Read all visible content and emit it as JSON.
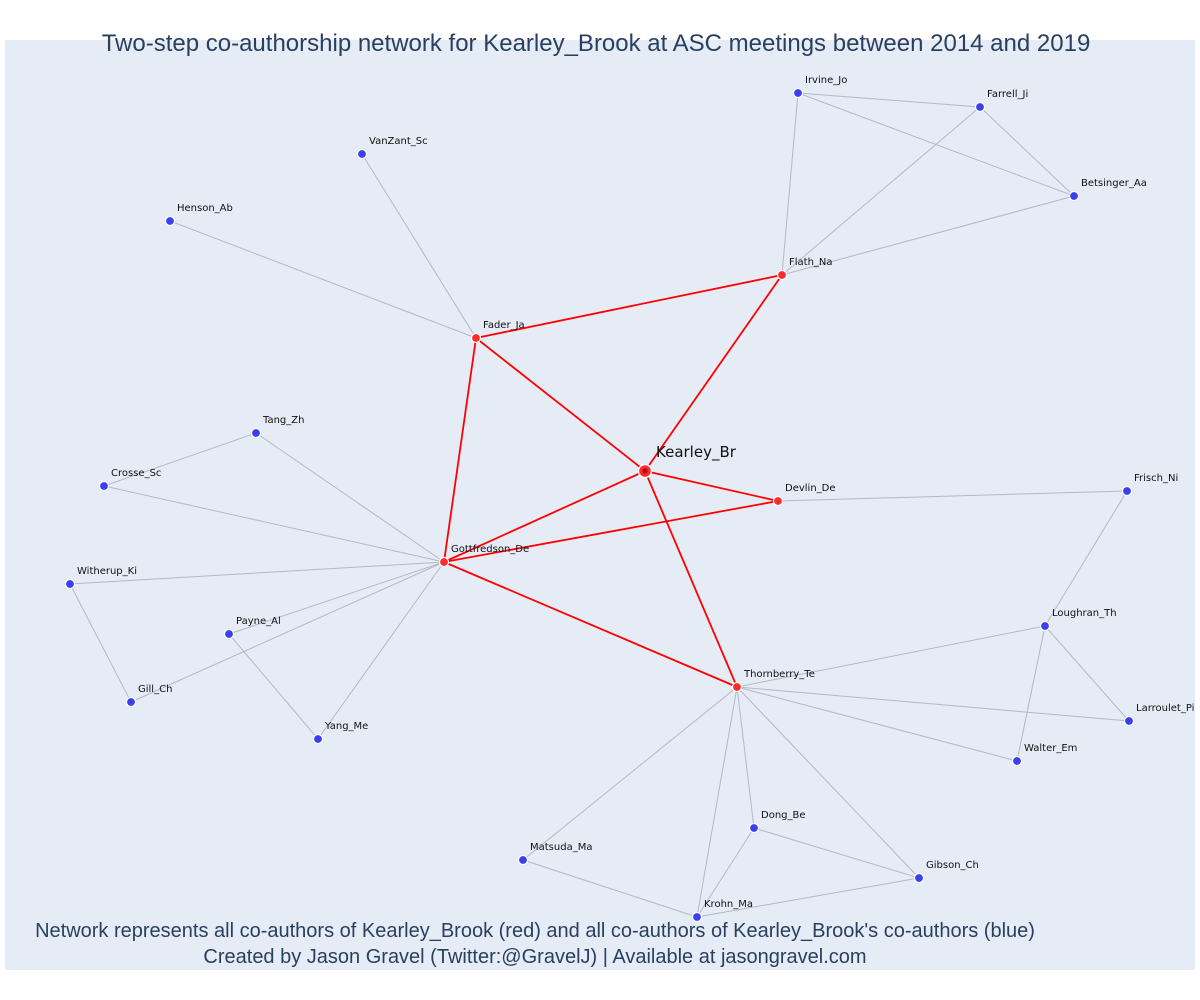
{
  "title": "Two-step co-authorship network for Kearley_Brook at ASC meetings between 2014 and 2019",
  "caption": {
    "line1": "Network represents all co-authors of Kearley_Brook (red) and all co-authors of Kearley_Brook's co-authors (blue)",
    "line2": "Created by Jason Gravel (Twitter:@GravelJ) | Available at jasongravel.com"
  },
  "colors": {
    "background": "#e5ecf6",
    "red": "#ff0000",
    "blue": "#3a3ff0",
    "grey_edge": "#b4b7c8",
    "title": "#2a3f5f"
  },
  "nodes": [
    {
      "id": "Kearley_Br",
      "group": "center"
    },
    {
      "id": "Fader_Ja",
      "group": "red"
    },
    {
      "id": "Flath_Na",
      "group": "red"
    },
    {
      "id": "Devlin_De",
      "group": "red"
    },
    {
      "id": "Gottfredson_De",
      "group": "red"
    },
    {
      "id": "Thornberry_Te",
      "group": "red"
    },
    {
      "id": "Irvine_Jo",
      "group": "blue"
    },
    {
      "id": "Farrell_Ji",
      "group": "blue"
    },
    {
      "id": "Betsinger_Aa",
      "group": "blue"
    },
    {
      "id": "VanZant_Sc",
      "group": "blue"
    },
    {
      "id": "Henson_Ab",
      "group": "blue"
    },
    {
      "id": "Tang_Zh",
      "group": "blue"
    },
    {
      "id": "Crosse_Sc",
      "group": "blue"
    },
    {
      "id": "Frisch_Ni",
      "group": "blue"
    },
    {
      "id": "Witherup_Ki",
      "group": "blue"
    },
    {
      "id": "Payne_Al",
      "group": "blue"
    },
    {
      "id": "Loughran_Th",
      "group": "blue"
    },
    {
      "id": "Gill_Ch",
      "group": "blue"
    },
    {
      "id": "Larroulet_Pi",
      "group": "blue"
    },
    {
      "id": "Yang_Me",
      "group": "blue"
    },
    {
      "id": "Walter_Em",
      "group": "blue"
    },
    {
      "id": "Dong_Be",
      "group": "blue"
    },
    {
      "id": "Matsuda_Ma",
      "group": "blue"
    },
    {
      "id": "Gibson_Ch",
      "group": "blue"
    },
    {
      "id": "Krohn_Ma",
      "group": "blue"
    }
  ],
  "edges": [
    {
      "source": "Kearley_Br",
      "target": "Fader_Ja",
      "type": "red"
    },
    {
      "source": "Kearley_Br",
      "target": "Flath_Na",
      "type": "red"
    },
    {
      "source": "Kearley_Br",
      "target": "Devlin_De",
      "type": "red"
    },
    {
      "source": "Kearley_Br",
      "target": "Gottfredson_De",
      "type": "red"
    },
    {
      "source": "Kearley_Br",
      "target": "Thornberry_Te",
      "type": "red"
    },
    {
      "source": "Fader_Ja",
      "target": "Flath_Na",
      "type": "red"
    },
    {
      "source": "Fader_Ja",
      "target": "Gottfredson_De",
      "type": "red"
    },
    {
      "source": "Gottfredson_De",
      "target": "Devlin_De",
      "type": "red"
    },
    {
      "source": "Gottfredson_De",
      "target": "Thornberry_Te",
      "type": "red"
    },
    {
      "source": "Irvine_Jo",
      "target": "Farrell_Ji",
      "type": "grey"
    },
    {
      "source": "Irvine_Jo",
      "target": "Betsinger_Aa",
      "type": "grey"
    },
    {
      "source": "Irvine_Jo",
      "target": "Flath_Na",
      "type": "grey"
    },
    {
      "source": "Farrell_Ji",
      "target": "Betsinger_Aa",
      "type": "grey"
    },
    {
      "source": "Farrell_Ji",
      "target": "Flath_Na",
      "type": "grey"
    },
    {
      "source": "Betsinger_Aa",
      "target": "Flath_Na",
      "type": "grey"
    },
    {
      "source": "VanZant_Sc",
      "target": "Fader_Ja",
      "type": "grey"
    },
    {
      "source": "Henson_Ab",
      "target": "Fader_Ja",
      "type": "grey"
    },
    {
      "source": "Tang_Zh",
      "target": "Crosse_Sc",
      "type": "grey"
    },
    {
      "source": "Tang_Zh",
      "target": "Gottfredson_De",
      "type": "grey"
    },
    {
      "source": "Crosse_Sc",
      "target": "Gottfredson_De",
      "type": "grey"
    },
    {
      "source": "Witherup_Ki",
      "target": "Gottfredson_De",
      "type": "grey"
    },
    {
      "source": "Witherup_Ki",
      "target": "Gill_Ch",
      "type": "grey"
    },
    {
      "source": "Gill_Ch",
      "target": "Gottfredson_De",
      "type": "grey"
    },
    {
      "source": "Payne_Al",
      "target": "Gottfredson_De",
      "type": "grey"
    },
    {
      "source": "Payne_Al",
      "target": "Yang_Me",
      "type": "grey"
    },
    {
      "source": "Yang_Me",
      "target": "Gottfredson_De",
      "type": "grey"
    },
    {
      "source": "Devlin_De",
      "target": "Frisch_Ni",
      "type": "grey"
    },
    {
      "source": "Frisch_Ni",
      "target": "Loughran_Th",
      "type": "grey"
    },
    {
      "source": "Loughran_Th",
      "target": "Thornberry_Te",
      "type": "grey"
    },
    {
      "source": "Loughran_Th",
      "target": "Larroulet_Pi",
      "type": "grey"
    },
    {
      "source": "Loughran_Th",
      "target": "Walter_Em",
      "type": "grey"
    },
    {
      "source": "Thornberry_Te",
      "target": "Larroulet_Pi",
      "type": "grey"
    },
    {
      "source": "Thornberry_Te",
      "target": "Walter_Em",
      "type": "grey"
    },
    {
      "source": "Thornberry_Te",
      "target": "Dong_Be",
      "type": "grey"
    },
    {
      "source": "Thornberry_Te",
      "target": "Gibson_Ch",
      "type": "grey"
    },
    {
      "source": "Thornberry_Te",
      "target": "Matsuda_Ma",
      "type": "grey"
    },
    {
      "source": "Thornberry_Te",
      "target": "Krohn_Ma",
      "type": "grey"
    },
    {
      "source": "Dong_Be",
      "target": "Gibson_Ch",
      "type": "grey"
    },
    {
      "source": "Dong_Be",
      "target": "Krohn_Ma",
      "type": "grey"
    },
    {
      "source": "Matsuda_Ma",
      "target": "Krohn_Ma",
      "type": "grey"
    },
    {
      "source": "Krohn_Ma",
      "target": "Gibson_Ch",
      "type": "grey"
    }
  ]
}
